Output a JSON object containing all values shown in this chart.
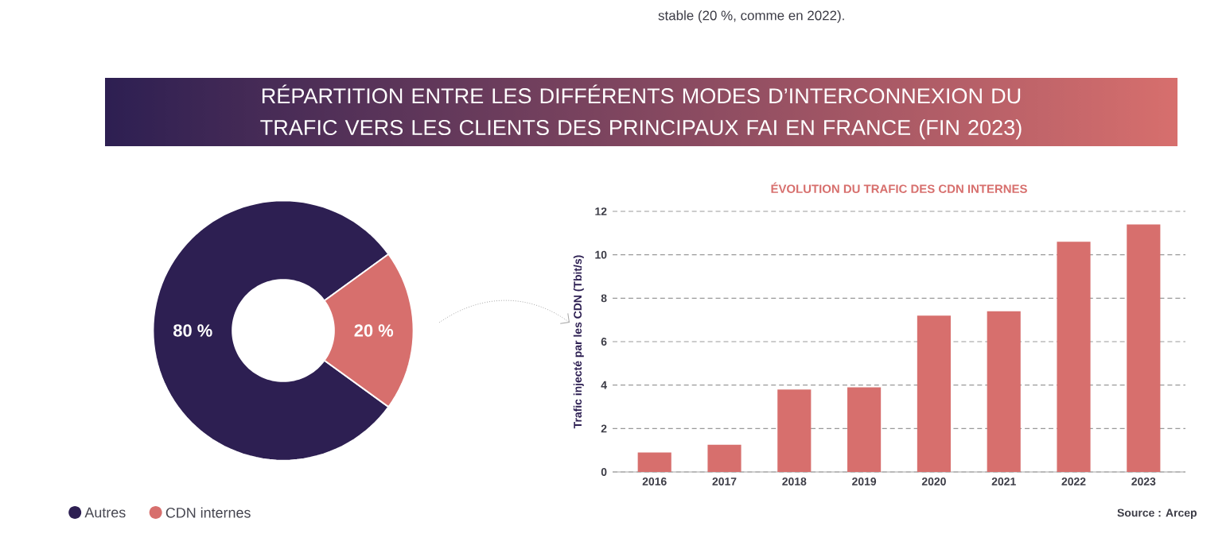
{
  "chart_data": [
    {
      "type": "donut",
      "title": "RÉPARTITION ENTRE LES DIFFÉRENTS MODES D’INTERCONNEXION DU TRAFIC VERS LES CLIENTS DES PRINCIPAUX FAI EN FRANCE (FIN 2023)",
      "annotations": [
        "stable (20 %, comme en 2022)."
      ],
      "categories": [
        "Autres",
        "CDN internes"
      ],
      "values": [
        80,
        20
      ],
      "colors": [
        "#2d1f52",
        "#d76f6d"
      ],
      "value_labels": [
        "80 %",
        "20 %"
      ],
      "legend": "bottom left"
    },
    {
      "type": "bar",
      "title": "ÉVOLUTION DU TRAFIC DES CDN INTERNES",
      "ylabel": "Trafic injecté par les CDN (Tbit/s)",
      "annotations": [
        "Source : Arcep"
      ],
      "categories": [
        "2016",
        "2017",
        "2018",
        "2019",
        "2020",
        "2021",
        "2022",
        "2023"
      ],
      "values": [
        0.9,
        1.25,
        3.8,
        3.9,
        7.2,
        7.4,
        10.6,
        11.4
      ],
      "color": "#d76f6d",
      "ylim": [
        0,
        12
      ],
      "yticks": [
        0,
        2,
        4,
        6,
        8,
        10,
        12
      ],
      "grid": "y"
    }
  ]
}
